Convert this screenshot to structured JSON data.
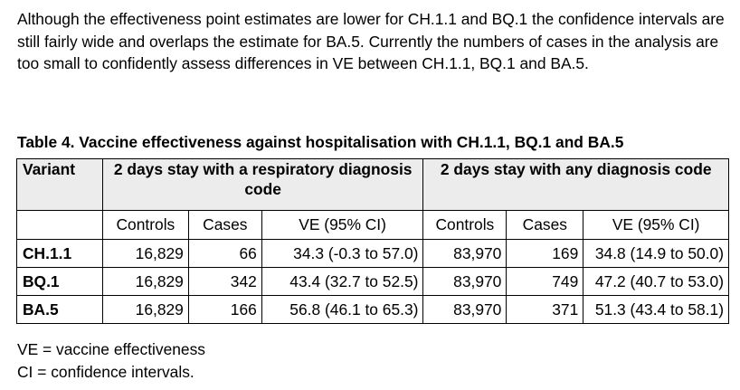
{
  "intro_text": "Although the effectiveness point estimates are lower for CH.1.1 and BQ.1 the confidence intervals are still fairly wide and overlaps the estimate for BA.5. Currently the numbers of cases in the analysis are too small to confidently assess differences in VE between CH.1.1, BQ.1 and BA.5.",
  "table": {
    "title": "Table 4. Vaccine effectiveness against hospitalisation with CH.1.1, BQ.1 and BA.5",
    "variant_header": "Variant",
    "group1_header": "2 days stay with a respiratory diagnosis code",
    "group2_header": "2 days stay with any diagnosis code",
    "subheaders": [
      "Controls",
      "Cases",
      "VE (95% CI)",
      "Controls",
      "Cases",
      "VE (95% CI)"
    ],
    "rows": [
      {
        "variant": "CH.1.1",
        "controls1": "16,829",
        "cases1": "66",
        "ve1": "34.3 (-0.3 to 57.0)",
        "controls2": "83,970",
        "cases2": "169",
        "ve2": "34.8 (14.9 to 50.0)"
      },
      {
        "variant": "BQ.1",
        "controls1": "16,829",
        "cases1": "342",
        "ve1": "43.4 (32.7 to 52.5)",
        "controls2": "83,970",
        "cases2": "749",
        "ve2": "47.2 (40.7 to 53.0)"
      },
      {
        "variant": "BA.5",
        "controls1": "16,829",
        "cases1": "166",
        "ve1": "56.8 (46.1 to 65.3)",
        "controls2": "83,970",
        "cases2": "371",
        "ve2": "51.3 (43.4 to 58.1)"
      }
    ]
  },
  "footnotes": [
    "VE = vaccine effectiveness",
    "CI = confidence intervals."
  ]
}
